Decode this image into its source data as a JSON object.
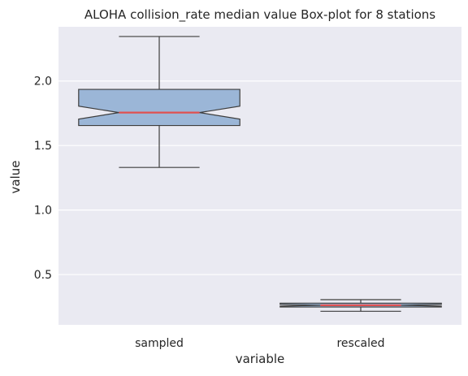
{
  "chart_data": {
    "type": "box",
    "title": "ALOHA collision_rate median value Box-plot for 8 stations",
    "xlabel": "variable",
    "ylabel": "value",
    "ylim": [
      0.11,
      2.42
    ],
    "yticks": [
      "0.5",
      "1.0",
      "1.5",
      "2.0"
    ],
    "yticks_values": [
      0.5,
      1.0,
      1.5,
      2.0
    ],
    "grid": true,
    "notched": true,
    "box_color": "#9bb6d7",
    "median_color": "#e05050",
    "background_color": "#eaeaf2",
    "categories": [
      "sampled",
      "rescaled"
    ],
    "boxes": [
      {
        "category": "sampled",
        "whisker_low": 1.33,
        "q1": 1.655,
        "median": 1.755,
        "q3": 1.935,
        "whisker_high": 2.345,
        "notch_low": 1.705,
        "notch_high": 1.805
      },
      {
        "category": "rescaled",
        "whisker_low": 0.215,
        "q1": 0.248,
        "median": 0.262,
        "q3": 0.278,
        "whisker_high": 0.305,
        "notch_low": 0.255,
        "notch_high": 0.269
      }
    ]
  }
}
